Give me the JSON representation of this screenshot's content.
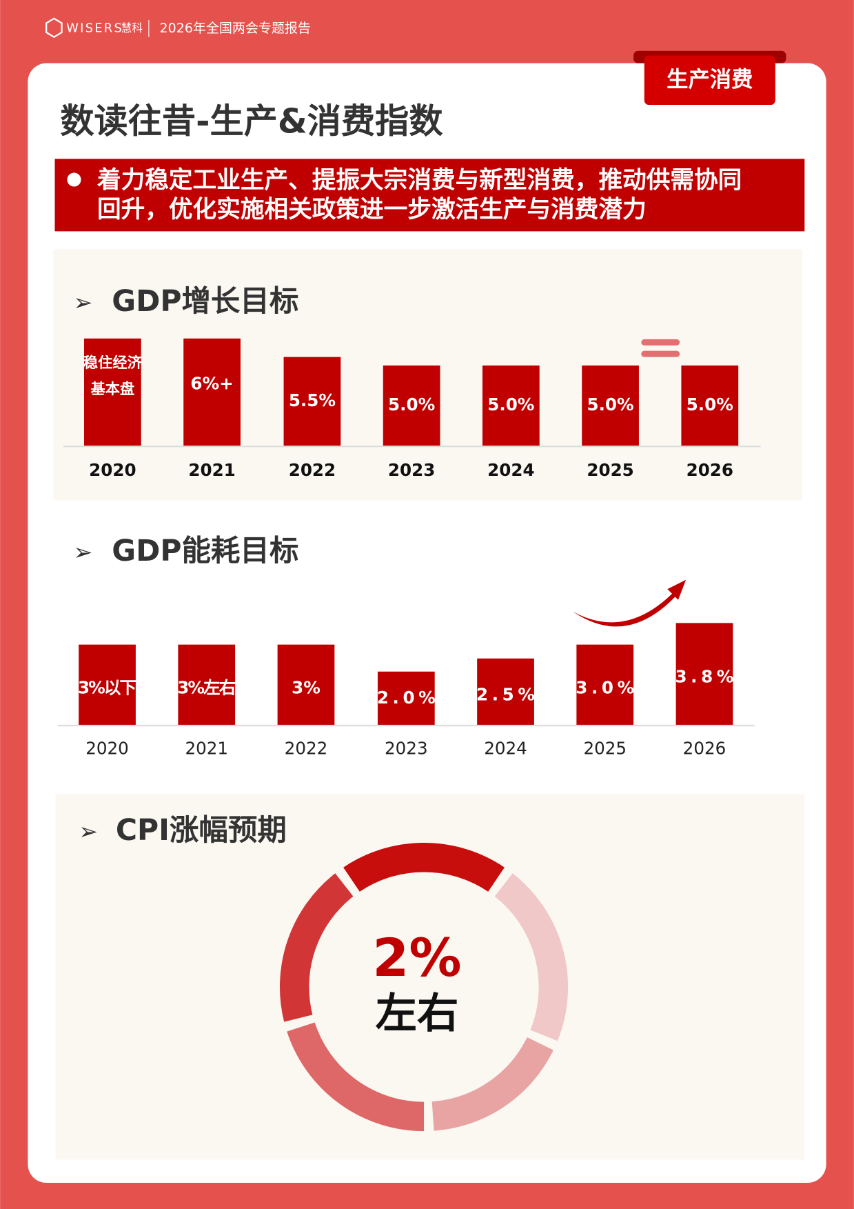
{
  "header": {
    "brand": "WISERS",
    "brand_cn": "慧科",
    "report": "2026年全国两会专题报告"
  },
  "tag": "生产消费",
  "title": "数读往昔-生产&消费指数",
  "banner": {
    "lines": [
      "着力稳定工业生产、提振大宗消费与新型消费，推动供需协同",
      "回升，优化实施相关政策进一步激活生产与消费潜力"
    ]
  },
  "gdp_growth": {
    "title": "GDP增长目标",
    "items": [
      {
        "year": "2020",
        "label": [
          "稳住经济",
          "基本盘"
        ]
      },
      {
        "year": "2021",
        "label": [
          "6%+"
        ]
      },
      {
        "year": "2022",
        "label": [
          "5.5%"
        ]
      },
      {
        "year": "2023",
        "label": [
          "5.0%"
        ]
      },
      {
        "year": "2024",
        "label": [
          "5.0%"
        ]
      },
      {
        "year": "2025",
        "label": [
          "5.0%"
        ]
      },
      {
        "year": "2026",
        "label": [
          "5.0%"
        ]
      }
    ]
  },
  "energy": {
    "title": "GDP能耗目标",
    "items": [
      {
        "year": "2020",
        "label": "3%以下"
      },
      {
        "year": "2021",
        "label": "3%左右"
      },
      {
        "year": "2022",
        "label": "3%"
      },
      {
        "year": "2023",
        "label": "2.0%"
      },
      {
        "year": "2024",
        "label": "2.5%"
      },
      {
        "year": "2025",
        "label": "3.0%"
      },
      {
        "year": "2026",
        "label": "3.8%"
      }
    ]
  },
  "cpi": {
    "title": "CPI涨幅预期",
    "value": "2%",
    "note": "左右"
  }
}
